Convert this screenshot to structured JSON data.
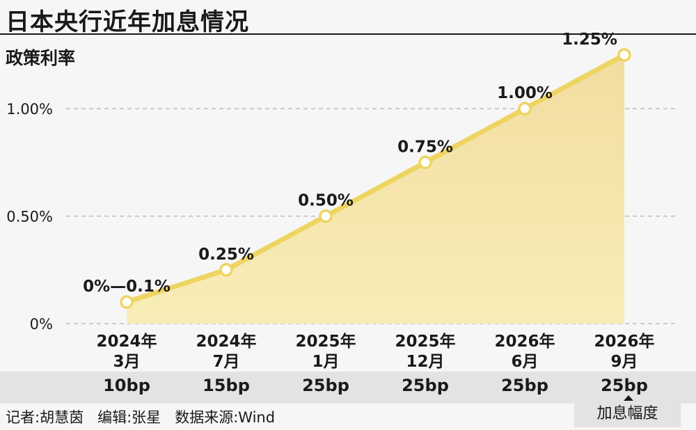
{
  "title": "日本央行近年加息情况",
  "chart_data": {
    "type": "area",
    "ylabel": "政策利率",
    "ylim": [
      0,
      1.25
    ],
    "yticks": [
      {
        "value": 0,
        "label": "0%"
      },
      {
        "value": 0.5,
        "label": "0.50%"
      },
      {
        "value": 1.0,
        "label": "1.00%"
      }
    ],
    "grid": true,
    "points": [
      {
        "year": "2024年",
        "month": "3月",
        "value": 0.1,
        "label": "0%—0.1%",
        "hike": "10bp"
      },
      {
        "year": "2024年",
        "month": "7月",
        "value": 0.25,
        "label": "0.25%",
        "hike": "15bp"
      },
      {
        "year": "2025年",
        "month": "1月",
        "value": 0.5,
        "label": "0.50%",
        "hike": "25bp"
      },
      {
        "year": "2025年",
        "month": "12月",
        "value": 0.75,
        "label": "0.75%",
        "hike": "25bp"
      },
      {
        "year": "2026年",
        "month": "6月",
        "value": 1.0,
        "label": "1.00%",
        "hike": "25bp"
      },
      {
        "year": "2026年",
        "month": "9月",
        "value": 1.25,
        "label": "1.25%",
        "hike": "25bp"
      }
    ],
    "colors": {
      "line": "#eed460",
      "fill_top": "#f2dda0",
      "fill_bottom": "#f8edb8",
      "grid": "#bdbdbd",
      "marker_fill": "#ffffff"
    }
  },
  "legend": {
    "hike_label": "加息幅度"
  },
  "footer": {
    "credits": "记者:胡慧茵   编辑:张星   数据来源:Wind"
  }
}
